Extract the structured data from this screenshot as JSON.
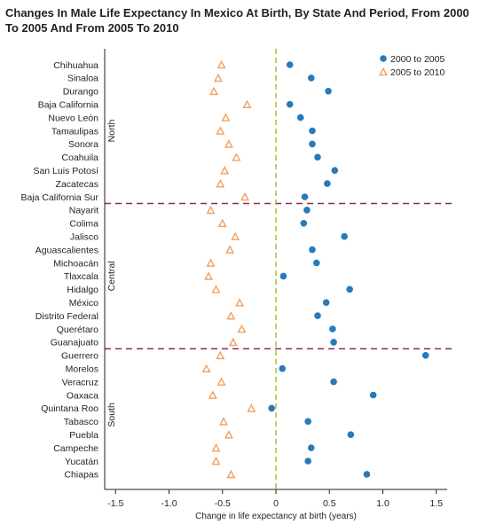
{
  "chart_data": {
    "type": "scatter",
    "title": "Changes In Male Life Expectancy In Mexico At Birth, By State And Period, From 2000 To 2005 And From 2005 To 2010",
    "xlabel": "Change in life expectancy at birth (years)",
    "xlim": [
      -1.6,
      1.6
    ],
    "xticks": [
      -1.5,
      -1.0,
      -0.5,
      0.0,
      0.5,
      1.0,
      1.5
    ],
    "xtick_labels": [
      "-1.5",
      "-1.0",
      "-0.5",
      "0",
      "0.5",
      "1.0",
      "1.5"
    ],
    "reference_line_x": 0,
    "legend_position": "top-right",
    "colors": {
      "series_2000_2005": "#2a7ab8",
      "series_2005_2010": "#f0a060",
      "zero_line": "#a8c02a",
      "region_divider": "#8a2a5a"
    },
    "states": [
      "Chihuahua",
      "Sinaloa",
      "Durango",
      "Baja California",
      "Nuevo León",
      "Tamaulipas",
      "Sonora",
      "Coahuila",
      "San Luis Potosí",
      "Zacatecas",
      "Baja California Sur",
      "Nayarit",
      "Colima",
      "Jalisco",
      "Aguascalientes",
      "Michoacán",
      "Tlaxcala",
      "Hidalgo",
      "México",
      "Distrito Federal",
      "Querétaro",
      "Guanajuato",
      "Guerrero",
      "Morelos",
      "Veracruz",
      "Oaxaca",
      "Quintana Roo",
      "Tabasco",
      "Puebla",
      "Campeche",
      "Yucatán",
      "Chiapas"
    ],
    "regions": [
      {
        "name": "North",
        "start": 0,
        "end": 10
      },
      {
        "name": "Central",
        "start": 11,
        "end": 21
      },
      {
        "name": "South",
        "start": 22,
        "end": 31
      }
    ],
    "series": [
      {
        "name": "2000 to 2005",
        "marker": "circle",
        "values": [
          0.13,
          0.33,
          0.49,
          0.13,
          0.23,
          0.34,
          0.34,
          0.39,
          0.55,
          0.48,
          0.27,
          0.29,
          0.26,
          0.64,
          0.34,
          0.38,
          0.07,
          0.69,
          0.47,
          0.39,
          0.53,
          0.54,
          1.4,
          0.06,
          0.54,
          0.91,
          -0.04,
          0.3,
          0.7,
          0.33,
          0.3,
          0.85
        ]
      },
      {
        "name": "2005 to 2010",
        "marker": "triangle",
        "values": [
          -0.51,
          -0.54,
          -0.58,
          -0.27,
          -0.47,
          -0.52,
          -0.44,
          -0.37,
          -0.48,
          -0.52,
          -0.29,
          -0.61,
          -0.5,
          -0.38,
          -0.43,
          -0.61,
          -0.63,
          -0.56,
          -0.34,
          -0.42,
          -0.32,
          -0.4,
          -0.52,
          -0.65,
          -0.51,
          -0.59,
          -0.23,
          -0.49,
          -0.44,
          -0.56,
          -0.56,
          -0.42
        ]
      }
    ]
  }
}
